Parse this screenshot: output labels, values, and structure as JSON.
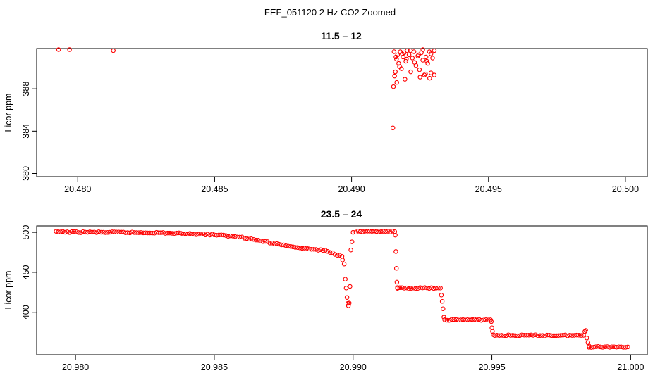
{
  "main_title": "FEF_051120  2 Hz CO2 Zoomed",
  "marker_color": "#ff0000",
  "chart_data": [
    {
      "type": "scatter",
      "title": "11.5 – 12",
      "xlabel": "",
      "ylabel": "Licor ppm",
      "xlim": [
        20.4785,
        20.5008
      ],
      "ylim": [
        379.7,
        391.8
      ],
      "xticks": [
        "20.480",
        "20.485",
        "20.490",
        "20.495",
        "20.500"
      ],
      "xtick_values": [
        20.48,
        20.485,
        20.49,
        20.495,
        20.5
      ],
      "yticks": [
        "380",
        "384",
        "388"
      ],
      "ytick_values": [
        380,
        384,
        388
      ],
      "grid": false,
      "series": [
        {
          "marker": "open-circle",
          "x": [
            20.4793,
            20.4797,
            20.4813,
            20.49151,
            20.49153,
            20.49157,
            20.4916,
            20.49164,
            20.49168,
            20.49172,
            20.49178,
            20.49182,
            20.49188,
            20.49192,
            20.49198,
            20.49203,
            20.4921,
            20.49216,
            20.49222,
            20.49228,
            20.49235,
            20.49242,
            20.49248,
            20.49255,
            20.4926,
            20.49266,
            20.49272,
            20.49278,
            20.49284,
            20.4929,
            20.49296,
            20.49302,
            20.49155,
            20.49162,
            20.49175,
            20.49185,
            20.492,
            20.49215,
            20.4923,
            20.49245,
            20.4926,
            20.49275,
            20.4929,
            20.49195,
            20.4925,
            20.4927,
            20.49285,
            20.49302,
            20.49165
          ],
          "y": [
            391.7,
            391.7,
            391.6,
            384.3,
            388.2,
            389.2,
            389.6,
            390.8,
            391.2,
            390.4,
            391.5,
            389.9,
            391.0,
            391.4,
            390.6,
            391.6,
            391.2,
            389.6,
            390.9,
            391.5,
            390.2,
            391.1,
            389.8,
            391.4,
            390.7,
            389.3,
            391.0,
            390.4,
            391.5,
            389.5,
            390.9,
            391.6,
            391.5,
            391.0,
            390.1,
            391.3,
            390.8,
            391.6,
            390.5,
            391.2,
            391.7,
            390.6,
            391.3,
            388.9,
            389.1,
            389.4,
            389.0,
            389.3,
            388.6
          ]
        }
      ]
    },
    {
      "type": "scatter",
      "title": "23.5 – 24",
      "xlabel": "",
      "ylabel": "Licor ppm",
      "xlim": [
        20.9786,
        21.0006
      ],
      "ylim": [
        347.0,
        508.0
      ],
      "xticks": [
        "20.980",
        "20.985",
        "20.990",
        "20.995",
        "21.000"
      ],
      "xtick_values": [
        20.98,
        20.985,
        20.99,
        20.995,
        21.0
      ],
      "yticks": [
        "400",
        "450",
        "500"
      ],
      "ytick_values": [
        400,
        450,
        500
      ],
      "grid": false,
      "series": [
        {
          "marker": "open-circle",
          "segments": [
            {
              "x": [
                20.9793,
                20.981,
                20.983,
                20.985,
                20.986,
                20.987,
                20.988,
                20.989,
                20.9896
              ],
              "y": [
                500.5,
                500.0,
                499.5,
                497.0,
                494.0,
                487.0,
                481.0,
                477.0,
                470.0
              ]
            },
            {
              "x": [
                20.98962,
                20.98968,
                20.98972,
                20.98975,
                20.98978,
                20.98981,
                20.98983,
                20.98986,
                20.98989,
                20.98992,
                20.98996,
                20.99
              ],
              "y": [
                466.0,
                461.0,
                442.0,
                431.0,
                418.0,
                411.0,
                408.0,
                412.0,
                432.0,
                478.0,
                488.0,
                500.0
              ]
            },
            {
              "x": [
                20.9901,
                20.9915
              ],
              "y": [
                500.8,
                500.8
              ]
            },
            {
              "x": [
                20.99152,
                20.99154,
                20.99156,
                20.99158,
                20.9916
              ],
              "y": [
                496.0,
                476.0,
                455.0,
                437.0,
                430.0
              ]
            },
            {
              "x": [
                20.9916,
                20.99315
              ],
              "y": [
                430.3,
                430.3
              ]
            },
            {
              "x": [
                20.99318,
                20.99321,
                20.99324,
                20.99327
              ],
              "y": [
                421.0,
                413.0,
                404.0,
                394.0
              ]
            },
            {
              "x": [
                20.9933,
                20.99495
              ],
              "y": [
                390.6,
                390.6
              ]
            },
            {
              "x": [
                20.99498,
                20.995,
                20.99502,
                20.99505
              ],
              "y": [
                388.0,
                381.0,
                376.0,
                372.0
              ]
            },
            {
              "x": [
                20.9951,
                20.9983
              ],
              "y": [
                371.2,
                371.2
              ]
            },
            {
              "x": [
                20.99835,
                20.99838,
                20.99842,
                20.99846,
                20.9985
              ],
              "y": [
                376.0,
                378.0,
                368.0,
                362.0,
                358.0
              ]
            },
            {
              "x": [
                20.9985,
                20.9999
              ],
              "y": [
                356.8,
                356.8
              ]
            }
          ]
        }
      ]
    }
  ]
}
